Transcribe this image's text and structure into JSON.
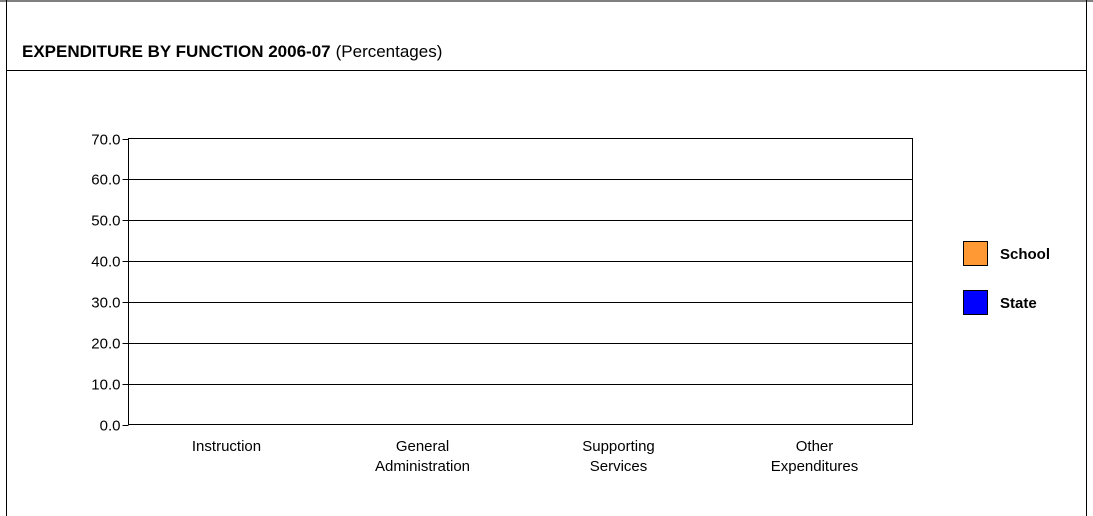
{
  "chart_data": {
    "type": "bar",
    "title": "EXPENDITURE BY FUNCTION 2006-07",
    "subtitle": "(Percentages)",
    "categories": [
      [
        "Instruction"
      ],
      [
        "General",
        "Administration"
      ],
      [
        "Supporting",
        "Services"
      ],
      [
        "Other",
        "Expenditures"
      ]
    ],
    "series": [
      {
        "name": "School",
        "color": "#ff9933",
        "values": [
          null,
          null,
          null,
          null
        ]
      },
      {
        "name": "State",
        "color": "#0000ff",
        "values": [
          null,
          null,
          null,
          null
        ]
      }
    ],
    "yticks": [
      "0.0",
      "10.0",
      "20.0",
      "30.0",
      "40.0",
      "50.0",
      "60.0",
      "70.0"
    ],
    "ylim": [
      0,
      70
    ],
    "grid": true,
    "legend_position": "right"
  }
}
